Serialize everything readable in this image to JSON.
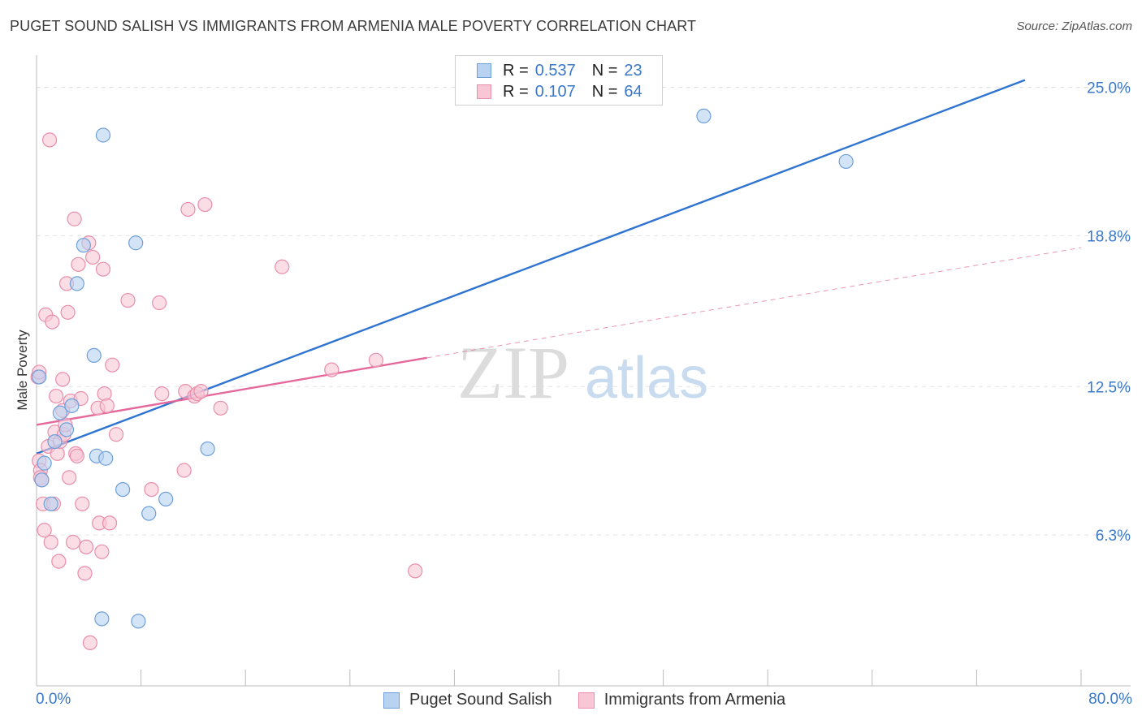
{
  "title": "PUGET SOUND SALISH VS IMMIGRANTS FROM ARMENIA MALE POVERTY CORRELATION CHART",
  "source": "Source: ZipAtlas.com",
  "watermark": {
    "zip": "ZIP",
    "atlas": "atlas"
  },
  "legend": {
    "rows": [
      {
        "r_label": "R =",
        "r_value": "0.537",
        "n_label": "N =",
        "n_value": "23"
      },
      {
        "r_label": "R =",
        "r_value": "0.107",
        "n_label": "N =",
        "n_value": "64"
      }
    ]
  },
  "colors": {
    "blue_fill": "#b8d2f2",
    "blue_stroke": "#6f9fd8",
    "blue_line": "#2f74d0",
    "pink_fill": "#f8c6d5",
    "pink_stroke": "#e98eab",
    "pink_line": "#e4689a",
    "tick_text": "#3a78c8",
    "grid": "#e3e3e3"
  },
  "chart_data": {
    "type": "scatter",
    "title": "PUGET SOUND SALISH VS IMMIGRANTS FROM ARMENIA MALE POVERTY CORRELATION CHART",
    "xlabel": "",
    "ylabel": "Male Poverty",
    "xlim": [
      0,
      80
    ],
    "ylim": [
      0,
      26.0
    ],
    "x_tick_labels": [
      "0.0%",
      "80.0%"
    ],
    "y_ticks": [
      6.3,
      12.5,
      18.8,
      25.0
    ],
    "y_tick_labels": [
      "6.3%",
      "12.5%",
      "18.8%",
      "25.0%"
    ],
    "series": [
      {
        "name": "Puget Sound Salish",
        "color": "blue",
        "R": 0.537,
        "N": 23,
        "points": [
          [
            0.2,
            12.9
          ],
          [
            0.4,
            8.6
          ],
          [
            0.6,
            9.3
          ],
          [
            1.1,
            7.6
          ],
          [
            1.4,
            10.2
          ],
          [
            1.8,
            11.4
          ],
          [
            2.3,
            10.7
          ],
          [
            2.7,
            11.7
          ],
          [
            3.1,
            16.8
          ],
          [
            3.6,
            18.4
          ],
          [
            4.4,
            13.8
          ],
          [
            4.6,
            9.6
          ],
          [
            5.0,
            2.8
          ],
          [
            5.1,
            23.0
          ],
          [
            5.3,
            9.5
          ],
          [
            6.6,
            8.2
          ],
          [
            7.6,
            18.5
          ],
          [
            7.8,
            2.7
          ],
          [
            8.6,
            7.2
          ],
          [
            9.9,
            7.8
          ],
          [
            13.1,
            9.9
          ],
          [
            51.1,
            23.8
          ],
          [
            62.0,
            21.9
          ]
        ],
        "trend": {
          "x": [
            0,
            75.7
          ],
          "y": [
            9.7,
            25.3
          ],
          "dashed": false
        }
      },
      {
        "name": "Immigrants from Armenia",
        "color": "pink",
        "R": 0.107,
        "N": 64,
        "points": [
          [
            0.1,
            12.9
          ],
          [
            0.2,
            13.1
          ],
          [
            0.2,
            9.4
          ],
          [
            0.3,
            9.0
          ],
          [
            0.3,
            8.7
          ],
          [
            0.4,
            8.6
          ],
          [
            0.5,
            7.6
          ],
          [
            0.6,
            6.5
          ],
          [
            0.7,
            15.5
          ],
          [
            0.9,
            10.0
          ],
          [
            1.0,
            22.8
          ],
          [
            1.1,
            6.0
          ],
          [
            1.2,
            15.2
          ],
          [
            1.3,
            7.6
          ],
          [
            1.4,
            10.6
          ],
          [
            1.5,
            12.1
          ],
          [
            1.6,
            9.7
          ],
          [
            1.7,
            5.2
          ],
          [
            1.8,
            10.2
          ],
          [
            2.0,
            12.8
          ],
          [
            2.0,
            11.5
          ],
          [
            2.1,
            10.5
          ],
          [
            2.2,
            10.9
          ],
          [
            2.3,
            16.8
          ],
          [
            2.4,
            15.6
          ],
          [
            2.5,
            8.7
          ],
          [
            2.6,
            11.9
          ],
          [
            2.8,
            6.0
          ],
          [
            2.9,
            19.5
          ],
          [
            3.0,
            9.7
          ],
          [
            3.1,
            9.6
          ],
          [
            3.2,
            17.6
          ],
          [
            3.4,
            12.0
          ],
          [
            3.5,
            7.6
          ],
          [
            3.7,
            4.7
          ],
          [
            3.8,
            5.8
          ],
          [
            4.0,
            18.5
          ],
          [
            4.1,
            1.8
          ],
          [
            4.3,
            17.9
          ],
          [
            4.7,
            11.6
          ],
          [
            4.8,
            6.8
          ],
          [
            5.0,
            5.6
          ],
          [
            5.1,
            17.4
          ],
          [
            5.2,
            12.2
          ],
          [
            5.4,
            11.7
          ],
          [
            5.6,
            6.8
          ],
          [
            5.8,
            13.4
          ],
          [
            6.1,
            10.5
          ],
          [
            7.0,
            16.1
          ],
          [
            8.8,
            8.2
          ],
          [
            9.4,
            16.0
          ],
          [
            9.6,
            12.2
          ],
          [
            11.3,
            9.0
          ],
          [
            11.4,
            12.3
          ],
          [
            11.6,
            19.9
          ],
          [
            12.1,
            12.1
          ],
          [
            12.3,
            12.2
          ],
          [
            12.6,
            12.3
          ],
          [
            12.9,
            20.1
          ],
          [
            14.1,
            11.6
          ],
          [
            18.8,
            17.5
          ],
          [
            29.0,
            4.8
          ],
          [
            22.6,
            13.2
          ],
          [
            26.0,
            13.6
          ]
        ],
        "trend": {
          "x": [
            0,
            29.9
          ],
          "y": [
            10.9,
            13.7
          ],
          "dashed": false
        },
        "trend_extension": {
          "x": [
            29.9,
            80
          ],
          "y": [
            13.7,
            18.3
          ],
          "dashed": true
        }
      }
    ]
  },
  "bottom_legend": [
    {
      "label": "Puget Sound Salish"
    },
    {
      "label": "Immigrants from Armenia"
    }
  ]
}
